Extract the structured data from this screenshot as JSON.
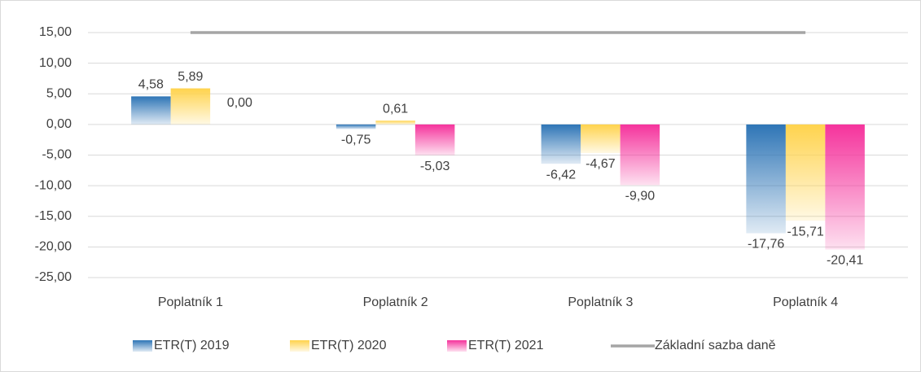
{
  "chart_data": {
    "type": "bar",
    "categories": [
      "Poplatník 1",
      "Poplatník 2",
      "Poplatník 3",
      "Poplatník 4"
    ],
    "series": [
      {
        "name": "ETR(T) 2019",
        "color": "#2e75b6",
        "values": [
          4.58,
          -0.75,
          -6.42,
          -17.76
        ],
        "value_labels": [
          "4,58",
          "-0,75",
          "-6,42",
          "-17,76"
        ]
      },
      {
        "name": "ETR(T) 2020",
        "color": "#ffd34d",
        "values": [
          5.89,
          0.61,
          -4.67,
          -15.71
        ],
        "value_labels": [
          "5,89",
          "0,61",
          "-4,67",
          "-15,71"
        ]
      },
      {
        "name": "ETR(T) 2021",
        "color": "#f5339c",
        "values": [
          0,
          -5.03,
          -9.9,
          -20.41
        ],
        "value_labels": [
          "0,00",
          "-5,03",
          "-9,90",
          "-20,41"
        ]
      },
      {
        "name": "Základní sazba daně",
        "type": "line",
        "color": "#a5a5a5",
        "values": [
          15,
          15,
          15,
          15
        ]
      }
    ],
    "ylim": [
      -25,
      15
    ],
    "yticks": [
      {
        "value": 15,
        "label": "15,00"
      },
      {
        "value": 10,
        "label": "10,00"
      },
      {
        "value": 5,
        "label": "5,00"
      },
      {
        "value": 0,
        "label": "0,00"
      },
      {
        "value": -5,
        "label": "-5,00"
      },
      {
        "value": -10,
        "label": "-10,00"
      },
      {
        "value": -15,
        "label": "-15,00"
      },
      {
        "value": -20,
        "label": "-20,00"
      },
      {
        "value": -25,
        "label": "-25,00"
      }
    ],
    "grid": true,
    "legend": "bottom"
  }
}
